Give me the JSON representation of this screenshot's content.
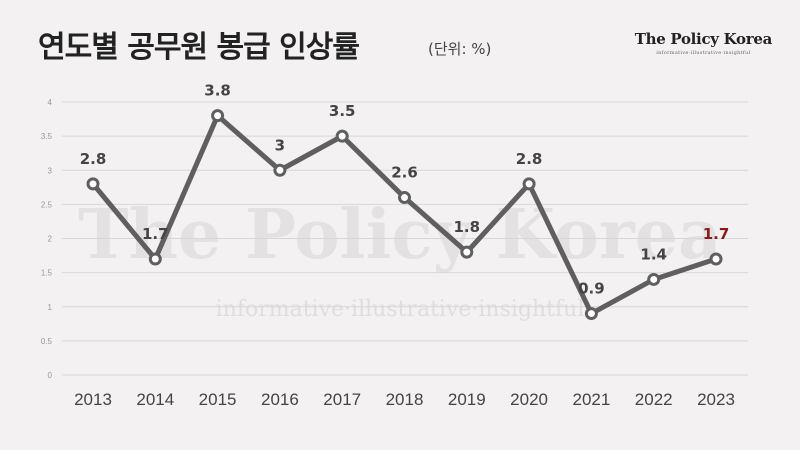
{
  "title": "연도별 공무원 봉급 인상률",
  "unit": "(단위: %)",
  "brand": {
    "name": "The Policy Korea",
    "tagline": "informative·illustrative·insightful"
  },
  "watermark": {
    "main": "The Policy Korea",
    "sub": "informative·illustrative·insightful"
  },
  "colors": {
    "line": "#5f5f5f",
    "highlight": "#8b1a1a",
    "label": "#444444",
    "grid": "#d8d6d6"
  },
  "chart_data": {
    "type": "line",
    "categories": [
      "2013",
      "2014",
      "2015",
      "2016",
      "2017",
      "2018",
      "2019",
      "2020",
      "2021",
      "2022",
      "2023"
    ],
    "values": [
      2.8,
      1.7,
      3.8,
      3,
      3.5,
      2.6,
      1.8,
      2.8,
      0.9,
      1.4,
      1.7
    ],
    "labels": [
      "2.8",
      "1.7",
      "3.8",
      "3",
      "3.5",
      "2.6",
      "1.8",
      "2.8",
      "0.9",
      "1.4",
      "1.7"
    ],
    "highlight_index": 10,
    "ylim": [
      0,
      4
    ],
    "yticks": [
      "0",
      "0.5",
      "1",
      "1.5",
      "2",
      "2.5",
      "3",
      "3.5",
      "4"
    ],
    "grid": true,
    "xlabel": "",
    "ylabel": ""
  }
}
